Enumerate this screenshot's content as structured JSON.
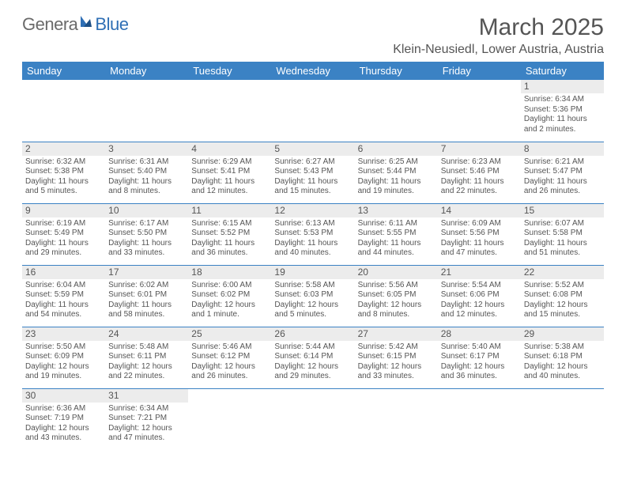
{
  "logo": {
    "text1": "Genera",
    "text2": "Blue"
  },
  "title": "March 2025",
  "location": "Klein-Neusiedl, Lower Austria, Austria",
  "header_color": "#3b82c4",
  "daynum_bg": "#ececec",
  "border_color": "#3b82c4",
  "text_color": "#555555",
  "days": [
    "Sunday",
    "Monday",
    "Tuesday",
    "Wednesday",
    "Thursday",
    "Friday",
    "Saturday"
  ],
  "weeks": [
    [
      null,
      null,
      null,
      null,
      null,
      null,
      {
        "n": "1",
        "sunrise": "Sunrise: 6:34 AM",
        "sunset": "Sunset: 5:36 PM",
        "day1": "Daylight: 11 hours",
        "day2": "and 2 minutes."
      }
    ],
    [
      {
        "n": "2",
        "sunrise": "Sunrise: 6:32 AM",
        "sunset": "Sunset: 5:38 PM",
        "day1": "Daylight: 11 hours",
        "day2": "and 5 minutes."
      },
      {
        "n": "3",
        "sunrise": "Sunrise: 6:31 AM",
        "sunset": "Sunset: 5:40 PM",
        "day1": "Daylight: 11 hours",
        "day2": "and 8 minutes."
      },
      {
        "n": "4",
        "sunrise": "Sunrise: 6:29 AM",
        "sunset": "Sunset: 5:41 PM",
        "day1": "Daylight: 11 hours",
        "day2": "and 12 minutes."
      },
      {
        "n": "5",
        "sunrise": "Sunrise: 6:27 AM",
        "sunset": "Sunset: 5:43 PM",
        "day1": "Daylight: 11 hours",
        "day2": "and 15 minutes."
      },
      {
        "n": "6",
        "sunrise": "Sunrise: 6:25 AM",
        "sunset": "Sunset: 5:44 PM",
        "day1": "Daylight: 11 hours",
        "day2": "and 19 minutes."
      },
      {
        "n": "7",
        "sunrise": "Sunrise: 6:23 AM",
        "sunset": "Sunset: 5:46 PM",
        "day1": "Daylight: 11 hours",
        "day2": "and 22 minutes."
      },
      {
        "n": "8",
        "sunrise": "Sunrise: 6:21 AM",
        "sunset": "Sunset: 5:47 PM",
        "day1": "Daylight: 11 hours",
        "day2": "and 26 minutes."
      }
    ],
    [
      {
        "n": "9",
        "sunrise": "Sunrise: 6:19 AM",
        "sunset": "Sunset: 5:49 PM",
        "day1": "Daylight: 11 hours",
        "day2": "and 29 minutes."
      },
      {
        "n": "10",
        "sunrise": "Sunrise: 6:17 AM",
        "sunset": "Sunset: 5:50 PM",
        "day1": "Daylight: 11 hours",
        "day2": "and 33 minutes."
      },
      {
        "n": "11",
        "sunrise": "Sunrise: 6:15 AM",
        "sunset": "Sunset: 5:52 PM",
        "day1": "Daylight: 11 hours",
        "day2": "and 36 minutes."
      },
      {
        "n": "12",
        "sunrise": "Sunrise: 6:13 AM",
        "sunset": "Sunset: 5:53 PM",
        "day1": "Daylight: 11 hours",
        "day2": "and 40 minutes."
      },
      {
        "n": "13",
        "sunrise": "Sunrise: 6:11 AM",
        "sunset": "Sunset: 5:55 PM",
        "day1": "Daylight: 11 hours",
        "day2": "and 44 minutes."
      },
      {
        "n": "14",
        "sunrise": "Sunrise: 6:09 AM",
        "sunset": "Sunset: 5:56 PM",
        "day1": "Daylight: 11 hours",
        "day2": "and 47 minutes."
      },
      {
        "n": "15",
        "sunrise": "Sunrise: 6:07 AM",
        "sunset": "Sunset: 5:58 PM",
        "day1": "Daylight: 11 hours",
        "day2": "and 51 minutes."
      }
    ],
    [
      {
        "n": "16",
        "sunrise": "Sunrise: 6:04 AM",
        "sunset": "Sunset: 5:59 PM",
        "day1": "Daylight: 11 hours",
        "day2": "and 54 minutes."
      },
      {
        "n": "17",
        "sunrise": "Sunrise: 6:02 AM",
        "sunset": "Sunset: 6:01 PM",
        "day1": "Daylight: 11 hours",
        "day2": "and 58 minutes."
      },
      {
        "n": "18",
        "sunrise": "Sunrise: 6:00 AM",
        "sunset": "Sunset: 6:02 PM",
        "day1": "Daylight: 12 hours",
        "day2": "and 1 minute."
      },
      {
        "n": "19",
        "sunrise": "Sunrise: 5:58 AM",
        "sunset": "Sunset: 6:03 PM",
        "day1": "Daylight: 12 hours",
        "day2": "and 5 minutes."
      },
      {
        "n": "20",
        "sunrise": "Sunrise: 5:56 AM",
        "sunset": "Sunset: 6:05 PM",
        "day1": "Daylight: 12 hours",
        "day2": "and 8 minutes."
      },
      {
        "n": "21",
        "sunrise": "Sunrise: 5:54 AM",
        "sunset": "Sunset: 6:06 PM",
        "day1": "Daylight: 12 hours",
        "day2": "and 12 minutes."
      },
      {
        "n": "22",
        "sunrise": "Sunrise: 5:52 AM",
        "sunset": "Sunset: 6:08 PM",
        "day1": "Daylight: 12 hours",
        "day2": "and 15 minutes."
      }
    ],
    [
      {
        "n": "23",
        "sunrise": "Sunrise: 5:50 AM",
        "sunset": "Sunset: 6:09 PM",
        "day1": "Daylight: 12 hours",
        "day2": "and 19 minutes."
      },
      {
        "n": "24",
        "sunrise": "Sunrise: 5:48 AM",
        "sunset": "Sunset: 6:11 PM",
        "day1": "Daylight: 12 hours",
        "day2": "and 22 minutes."
      },
      {
        "n": "25",
        "sunrise": "Sunrise: 5:46 AM",
        "sunset": "Sunset: 6:12 PM",
        "day1": "Daylight: 12 hours",
        "day2": "and 26 minutes."
      },
      {
        "n": "26",
        "sunrise": "Sunrise: 5:44 AM",
        "sunset": "Sunset: 6:14 PM",
        "day1": "Daylight: 12 hours",
        "day2": "and 29 minutes."
      },
      {
        "n": "27",
        "sunrise": "Sunrise: 5:42 AM",
        "sunset": "Sunset: 6:15 PM",
        "day1": "Daylight: 12 hours",
        "day2": "and 33 minutes."
      },
      {
        "n": "28",
        "sunrise": "Sunrise: 5:40 AM",
        "sunset": "Sunset: 6:17 PM",
        "day1": "Daylight: 12 hours",
        "day2": "and 36 minutes."
      },
      {
        "n": "29",
        "sunrise": "Sunrise: 5:38 AM",
        "sunset": "Sunset: 6:18 PM",
        "day1": "Daylight: 12 hours",
        "day2": "and 40 minutes."
      }
    ],
    [
      {
        "n": "30",
        "sunrise": "Sunrise: 6:36 AM",
        "sunset": "Sunset: 7:19 PM",
        "day1": "Daylight: 12 hours",
        "day2": "and 43 minutes."
      },
      {
        "n": "31",
        "sunrise": "Sunrise: 6:34 AM",
        "sunset": "Sunset: 7:21 PM",
        "day1": "Daylight: 12 hours",
        "day2": "and 47 minutes."
      },
      null,
      null,
      null,
      null,
      null
    ]
  ]
}
